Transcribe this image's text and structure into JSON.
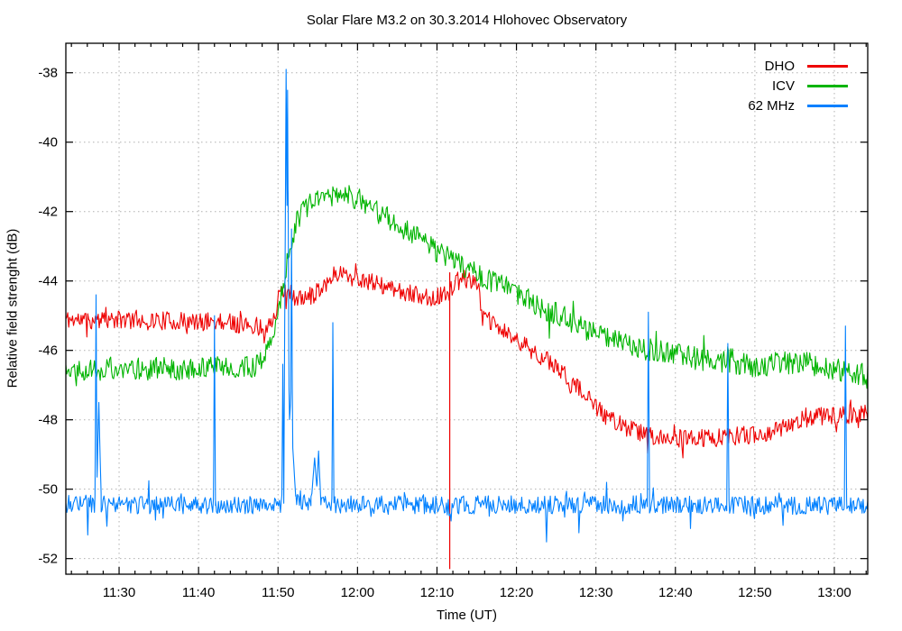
{
  "chart_data": {
    "type": "line",
    "title": "Solar Flare M3.2 on 30.3.2014 Hlohovec Observatory",
    "xlabel": "Time (UT)",
    "ylabel": "Relative field strenght (dB)",
    "background": "#ffffff",
    "border_color": "#000000",
    "grid": true,
    "grid_color": "#b0b0b0",
    "legend_position": "top-right-inside",
    "x_unit": "minutes after 11:00 UT",
    "x_range": [
      23.3,
      124.2
    ],
    "y_range": [
      -52.45,
      -37.15
    ],
    "y_ticks": [
      -52,
      -50,
      -48,
      -46,
      -44,
      -42,
      -40,
      -38
    ],
    "x_major_ticks": [
      {
        "t": 30,
        "label": "11:30"
      },
      {
        "t": 40,
        "label": "11:40"
      },
      {
        "t": 50,
        "label": "11:50"
      },
      {
        "t": 60,
        "label": "12:00"
      },
      {
        "t": 70,
        "label": "12:10"
      },
      {
        "t": 80,
        "label": "12:20"
      },
      {
        "t": 90,
        "label": "12:30"
      },
      {
        "t": 100,
        "label": "12:40"
      },
      {
        "t": 110,
        "label": "12:50"
      },
      {
        "t": 120,
        "label": "13:00"
      }
    ],
    "x_minor_step": 2,
    "sample_step_min": 0.12,
    "series": [
      {
        "name": "DHO",
        "color": "#ee0000",
        "noise": 0.27,
        "seed": 11,
        "anchors": [
          [
            23.3,
            -45.1
          ],
          [
            28,
            -45.15
          ],
          [
            32,
            -45.1
          ],
          [
            36,
            -45.15
          ],
          [
            40,
            -45.2
          ],
          [
            43,
            -45.15
          ],
          [
            45.5,
            -45.25
          ],
          [
            47.5,
            -45.3
          ],
          [
            48.8,
            -45.35
          ],
          [
            49.5,
            -45.0
          ],
          [
            50.2,
            -44.4
          ],
          [
            50.8,
            -44.3
          ],
          [
            51.5,
            -44.35
          ],
          [
            52.3,
            -44.5
          ],
          [
            53.2,
            -44.55
          ],
          [
            54.2,
            -44.4
          ],
          [
            55.5,
            -44.15
          ],
          [
            56.5,
            -43.95
          ],
          [
            57.5,
            -43.75
          ],
          [
            58.5,
            -43.8
          ],
          [
            59.5,
            -43.9
          ],
          [
            61,
            -44.0
          ],
          [
            63,
            -44.15
          ],
          [
            65,
            -44.3
          ],
          [
            67,
            -44.4
          ],
          [
            69,
            -44.45
          ],
          [
            70.8,
            -44.45
          ],
          [
            71.6,
            -44.3
          ],
          [
            72.2,
            -44.05
          ],
          [
            73,
            -43.95
          ],
          [
            74.2,
            -43.95
          ],
          [
            75.2,
            -44.0
          ],
          [
            75.5,
            -45.0
          ],
          [
            76.5,
            -45.15
          ],
          [
            78,
            -45.4
          ],
          [
            80,
            -45.7
          ],
          [
            82,
            -46.0
          ],
          [
            84,
            -46.3
          ],
          [
            86,
            -46.7
          ],
          [
            88,
            -47.15
          ],
          [
            90,
            -47.65
          ],
          [
            92,
            -48.0
          ],
          [
            94,
            -48.25
          ],
          [
            96,
            -48.4
          ],
          [
            98,
            -48.5
          ],
          [
            100,
            -48.55
          ],
          [
            103,
            -48.55
          ],
          [
            106,
            -48.5
          ],
          [
            109,
            -48.45
          ],
          [
            112,
            -48.35
          ],
          [
            114,
            -48.15
          ],
          [
            116,
            -48.0
          ],
          [
            118,
            -47.9
          ],
          [
            120,
            -47.9
          ],
          [
            122,
            -47.85
          ],
          [
            124.2,
            -47.8
          ]
        ],
        "vspike": {
          "t": 71.6,
          "top": -43.75,
          "bottom": -52.3
        }
      },
      {
        "name": "ICV",
        "color": "#00b400",
        "noise": 0.33,
        "seed": 22,
        "anchors": [
          [
            23.3,
            -46.5
          ],
          [
            27,
            -46.55
          ],
          [
            30,
            -46.5
          ],
          [
            33,
            -46.55
          ],
          [
            36,
            -46.5
          ],
          [
            39,
            -46.55
          ],
          [
            42,
            -46.45
          ],
          [
            44.5,
            -46.5
          ],
          [
            46.5,
            -46.5
          ],
          [
            47.6,
            -46.35
          ],
          [
            48.4,
            -46.05
          ],
          [
            49,
            -45.75
          ],
          [
            49.6,
            -45.25
          ],
          [
            50.2,
            -44.6
          ],
          [
            50.8,
            -43.9
          ],
          [
            51.4,
            -43.2
          ],
          [
            52,
            -42.55
          ],
          [
            53,
            -42.0
          ],
          [
            54,
            -41.75
          ],
          [
            55,
            -41.62
          ],
          [
            56.5,
            -41.55
          ],
          [
            57.5,
            -41.5
          ],
          [
            58.5,
            -41.55
          ],
          [
            59.5,
            -41.6
          ],
          [
            60.5,
            -41.7
          ],
          [
            62,
            -41.95
          ],
          [
            64,
            -42.2
          ],
          [
            66,
            -42.5
          ],
          [
            68,
            -42.8
          ],
          [
            70,
            -43.15
          ],
          [
            72,
            -43.4
          ],
          [
            74,
            -43.65
          ],
          [
            76,
            -43.9
          ],
          [
            78,
            -44.1
          ],
          [
            80,
            -44.35
          ],
          [
            82,
            -44.6
          ],
          [
            84,
            -44.85
          ],
          [
            86,
            -45.05
          ],
          [
            88,
            -45.3
          ],
          [
            90,
            -45.5
          ],
          [
            92,
            -45.7
          ],
          [
            94,
            -45.85
          ],
          [
            96,
            -45.95
          ],
          [
            98,
            -46.05
          ],
          [
            100,
            -46.1
          ],
          [
            102,
            -46.2
          ],
          [
            104,
            -46.3
          ],
          [
            106,
            -46.35
          ],
          [
            108,
            -46.4
          ],
          [
            110,
            -46.45
          ],
          [
            112,
            -46.4
          ],
          [
            114,
            -46.35
          ],
          [
            116,
            -46.35
          ],
          [
            118,
            -46.45
          ],
          [
            120,
            -46.55
          ],
          [
            122,
            -46.65
          ],
          [
            124.2,
            -46.7
          ]
        ]
      },
      {
        "name": "62 MHz",
        "color": "#0080ff",
        "noise": 0.26,
        "seed": 33,
        "tail": {
          "p": 0.035,
          "a": 0.85
        },
        "anchors": [
          [
            23.3,
            -50.42
          ],
          [
            40,
            -50.48
          ],
          [
            50,
            -50.45
          ],
          [
            52.5,
            -50.3
          ],
          [
            53.5,
            -50.45
          ],
          [
            80,
            -50.45
          ],
          [
            100,
            -50.45
          ],
          [
            124.2,
            -50.48
          ]
        ],
        "spikes": [
          [
            27.1,
            -44.4,
            0.13
          ],
          [
            27.45,
            -47.5,
            0.3
          ],
          [
            42.0,
            -45.0,
            0.13
          ],
          [
            50.6,
            -46.4,
            0.12
          ],
          [
            51.02,
            -37.9,
            0.3
          ],
          [
            51.2,
            -38.5,
            0.25
          ],
          [
            51.55,
            -47.6,
            0.7
          ],
          [
            51.7,
            -42.5,
            0.16
          ],
          [
            54.6,
            -49.1,
            0.45
          ],
          [
            55.1,
            -48.9,
            0.3
          ],
          [
            56.9,
            -45.2,
            0.13
          ],
          [
            96.6,
            -44.9,
            0.14
          ],
          [
            106.6,
            -45.8,
            0.14
          ],
          [
            121.4,
            -45.3,
            0.14
          ]
        ]
      }
    ]
  }
}
